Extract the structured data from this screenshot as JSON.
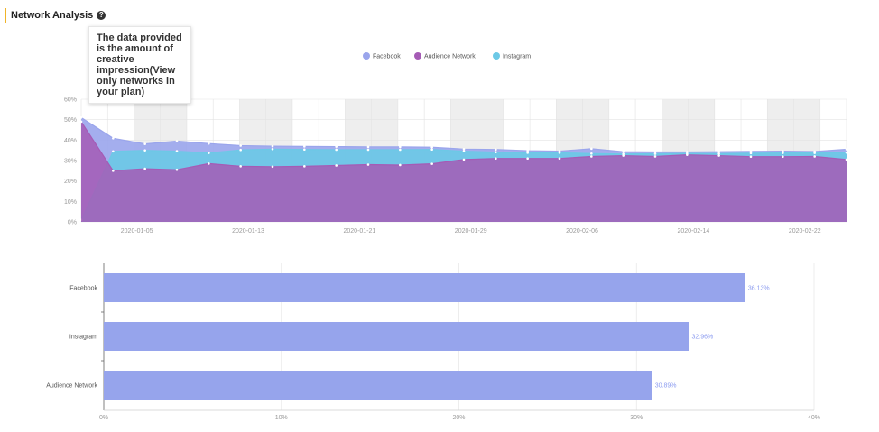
{
  "header": {
    "title": "Network Analysis",
    "help_icon": "?"
  },
  "tooltip": {
    "text": "The data provided is the amount of creative impression(View only networks in your plan)"
  },
  "colors": {
    "facebook": "#9aa5ec",
    "audience_network": "#a55bb5",
    "instagram": "#6cc9e6",
    "bar": "#96a4ec",
    "bar_label": "#8c9cf0"
  },
  "chart_data": [
    {
      "type": "area",
      "legend": [
        "Facebook",
        "Audience Network",
        "Instagram"
      ],
      "legend_position": "top-center",
      "grid": true,
      "ylim": [
        0,
        60
      ],
      "yticks": [
        "0%",
        "10%",
        "20%",
        "30%",
        "40%",
        "50%",
        "60%"
      ],
      "x_start": "2020-01-01",
      "x_end": "2020-02-25",
      "xticks": [
        "2020-01-05",
        "2020-01-13",
        "2020-01-21",
        "2020-01-29",
        "2020-02-06",
        "2020-02-14",
        "2020-02-22"
      ],
      "series": [
        {
          "name": "Audience Network",
          "color": "#a55bb5",
          "values": [
            49,
            25,
            26,
            25.5,
            28.5,
            27.2,
            27,
            27.2,
            27.6,
            28,
            27.8,
            28.4,
            30.5,
            31,
            31,
            31,
            32,
            32.4,
            32,
            32.8,
            32.4,
            31.9,
            31.9,
            32,
            30.5
          ]
        },
        {
          "name": "Instagram",
          "color": "#6cc9e6",
          "values": [
            1,
            34.5,
            35,
            34.6,
            33.7,
            35.2,
            35.6,
            35.4,
            35.3,
            35.3,
            35.3,
            35.4,
            34.6,
            34.1,
            33.8,
            33.8,
            33.4,
            33.2,
            33.3,
            33.5,
            33.4,
            33.6,
            33.7,
            33.7,
            33.9
          ]
        },
        {
          "name": "Facebook",
          "color": "#9aa5ec",
          "values": [
            51,
            40.9,
            38.1,
            39.5,
            38.3,
            37.3,
            37,
            36.9,
            36.8,
            36.7,
            36.7,
            36.5,
            35.6,
            35.4,
            34.8,
            34.6,
            35.8,
            34.3,
            34.2,
            34.2,
            34.3,
            34.5,
            34.6,
            34.4,
            35.5
          ]
        }
      ]
    },
    {
      "type": "bar",
      "orientation": "horizontal",
      "categories": [
        "Facebook",
        "Instagram",
        "Audience Network"
      ],
      "values": [
        36.13,
        32.96,
        30.89
      ],
      "labels": [
        "36.13%",
        "32.96%",
        "30.89%"
      ],
      "xlim": [
        0,
        40
      ],
      "xticks": [
        "0%",
        "10%",
        "20%",
        "30%",
        "40%"
      ],
      "grid": true
    }
  ]
}
